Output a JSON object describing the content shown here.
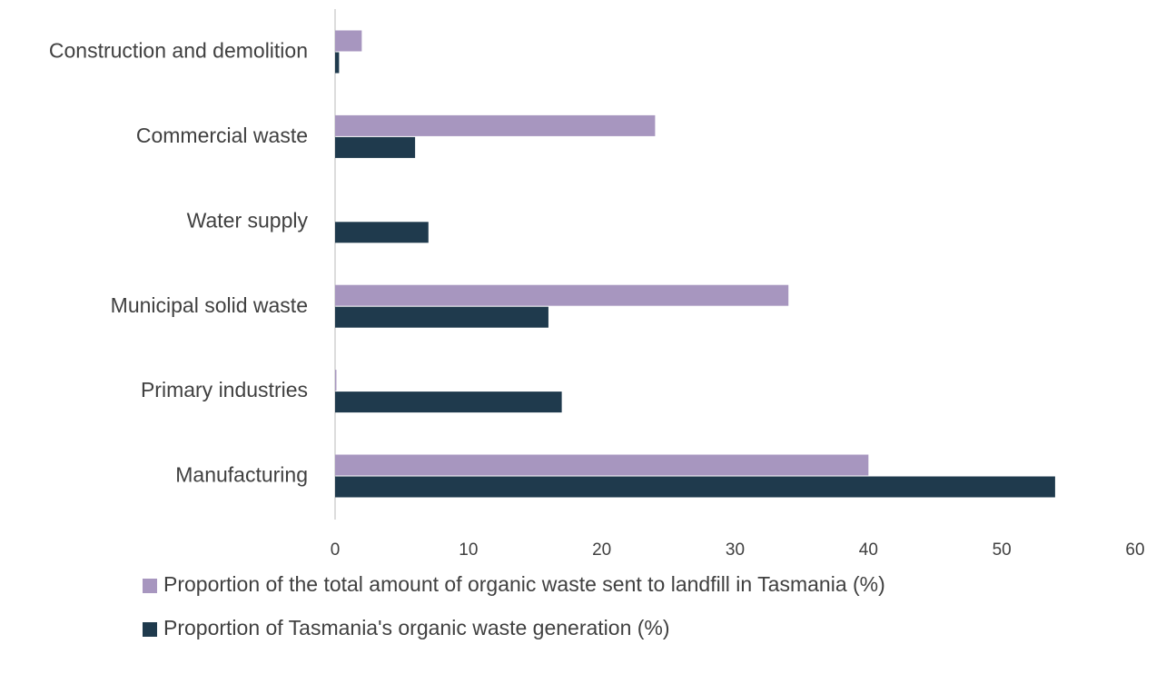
{
  "chart_data": {
    "type": "bar",
    "orientation": "horizontal",
    "categories": [
      "Construction and demolition",
      "Commercial waste",
      "Water supply",
      "Municipal solid waste",
      "Primary industries",
      "Manufacturing"
    ],
    "series": [
      {
        "name": "Proportion of the total amount of organic waste sent to landfill in Tasmania (%)",
        "color": "#a796bf",
        "values": [
          2,
          24,
          0,
          34,
          0.1,
          40
        ]
      },
      {
        "name": "Proportion of Tasmania's organic waste generation (%)",
        "color": "#1f3a4d",
        "values": [
          0.3,
          6,
          7,
          16,
          17,
          54
        ]
      }
    ],
    "xlim": [
      0,
      60
    ],
    "xticks": [
      0,
      10,
      20,
      30,
      40,
      50,
      60
    ]
  }
}
